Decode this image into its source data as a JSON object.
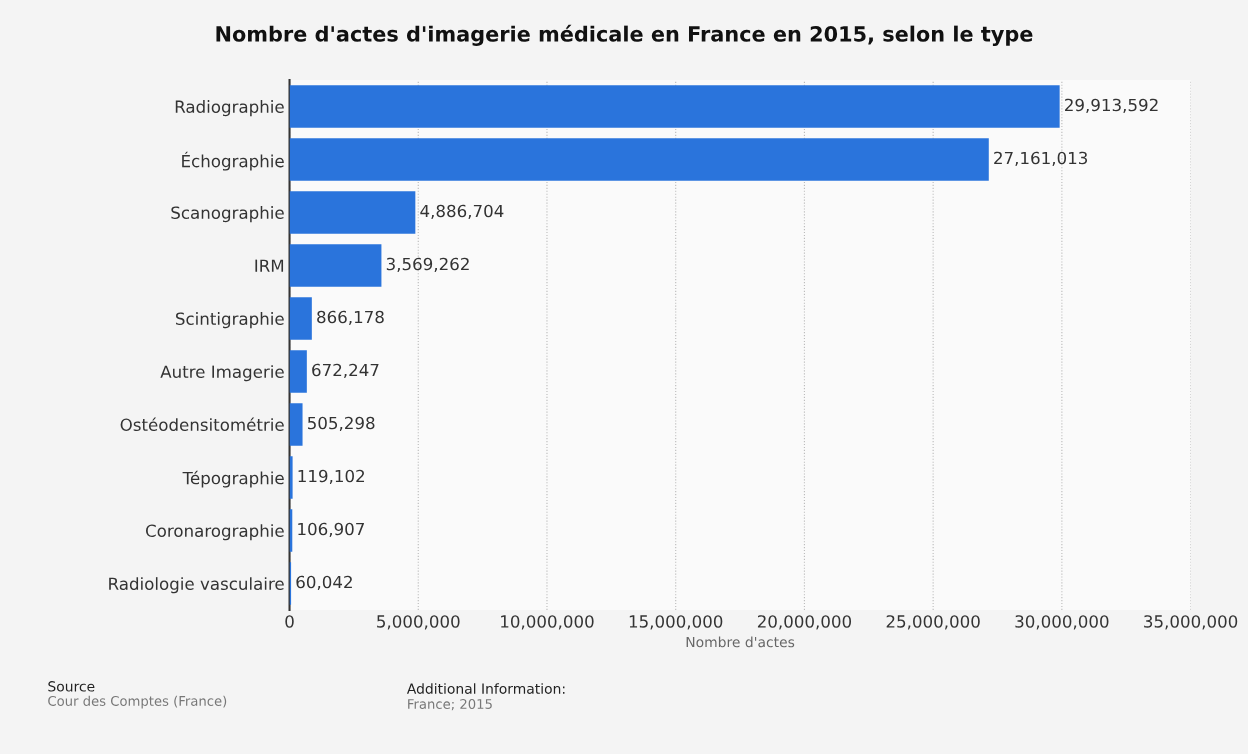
{
  "chart_data": {
    "type": "bar",
    "orientation": "horizontal",
    "title": "Nombre d'actes d'imagerie médicale en France en 2015, selon le type",
    "xlabel": "Nombre d'actes",
    "categories": [
      "Radiographie",
      "Échographie",
      "Scanographie",
      "IRM",
      "Scintigraphie",
      "Autre Imagerie",
      "Ostéodensitométrie",
      "Tépographie",
      "Coronarographie",
      "Radiologie vasculaire"
    ],
    "values": [
      29913592,
      27161013,
      4886704,
      3569262,
      866178,
      672247,
      505298,
      119102,
      106907,
      60042
    ],
    "value_labels": [
      "29,913,592",
      "27,161,013",
      "4,886,704",
      "3,569,262",
      "866,178",
      "672,247",
      "505,298",
      "119,102",
      "106,907",
      "60,042"
    ],
    "color": "#2a74dc",
    "xlim": [
      0,
      35000000
    ],
    "xticks": [
      0,
      {
        "value": 5000000,
        "label": "5,000,000"
      },
      {
        "value": 10000000,
        "label": "10,000,000"
      },
      {
        "value": 15000000,
        "label": "15,000,000"
      },
      {
        "value": 20000000,
        "label": "20,000,000"
      },
      {
        "value": 25000000,
        "label": "25,000,000"
      },
      {
        "value": 30000000,
        "label": "30,000,000"
      },
      {
        "value": 35000000,
        "label": "35,000,000"
      }
    ],
    "grid": "x",
    "legend": false,
    "annotations": [
      "Source",
      "Cour des Comptes (France)",
      "Additional Information:",
      "France; 2015"
    ]
  }
}
